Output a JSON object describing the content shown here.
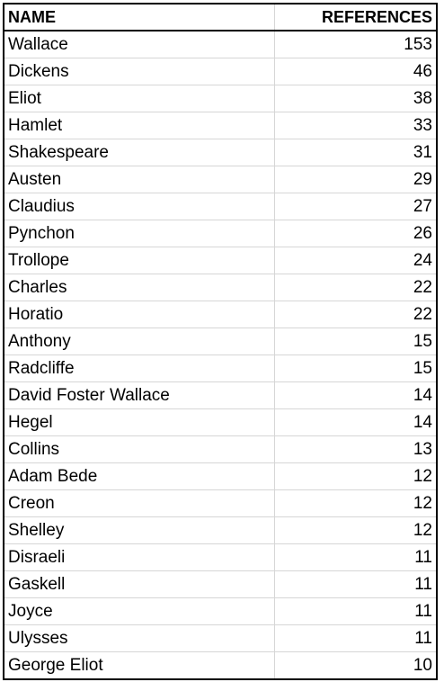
{
  "header": {
    "name": "NAME",
    "references": "REFERENCES"
  },
  "rows": [
    {
      "name": "Wallace",
      "references": "153"
    },
    {
      "name": "Dickens",
      "references": "46"
    },
    {
      "name": "Eliot",
      "references": "38"
    },
    {
      "name": "Hamlet",
      "references": "33"
    },
    {
      "name": "Shakespeare",
      "references": "31"
    },
    {
      "name": "Austen",
      "references": "29"
    },
    {
      "name": "Claudius",
      "references": "27"
    },
    {
      "name": "Pynchon",
      "references": "26"
    },
    {
      "name": "Trollope",
      "references": "24"
    },
    {
      "name": "Charles",
      "references": "22"
    },
    {
      "name": "Horatio",
      "references": "22"
    },
    {
      "name": "Anthony",
      "references": "15"
    },
    {
      "name": "Radcliffe",
      "references": "15"
    },
    {
      "name": "David Foster Wallace",
      "references": "14"
    },
    {
      "name": "Hegel",
      "references": "14"
    },
    {
      "name": "Collins",
      "references": "13"
    },
    {
      "name": "Adam Bede",
      "references": "12"
    },
    {
      "name": "Creon",
      "references": "12"
    },
    {
      "name": "Shelley",
      "references": "12"
    },
    {
      "name": "Disraeli",
      "references": "11"
    },
    {
      "name": "Gaskell",
      "references": "11"
    },
    {
      "name": "Joyce",
      "references": "11"
    },
    {
      "name": "Ulysses",
      "references": "11"
    },
    {
      "name": "George Eliot",
      "references": "10"
    }
  ]
}
